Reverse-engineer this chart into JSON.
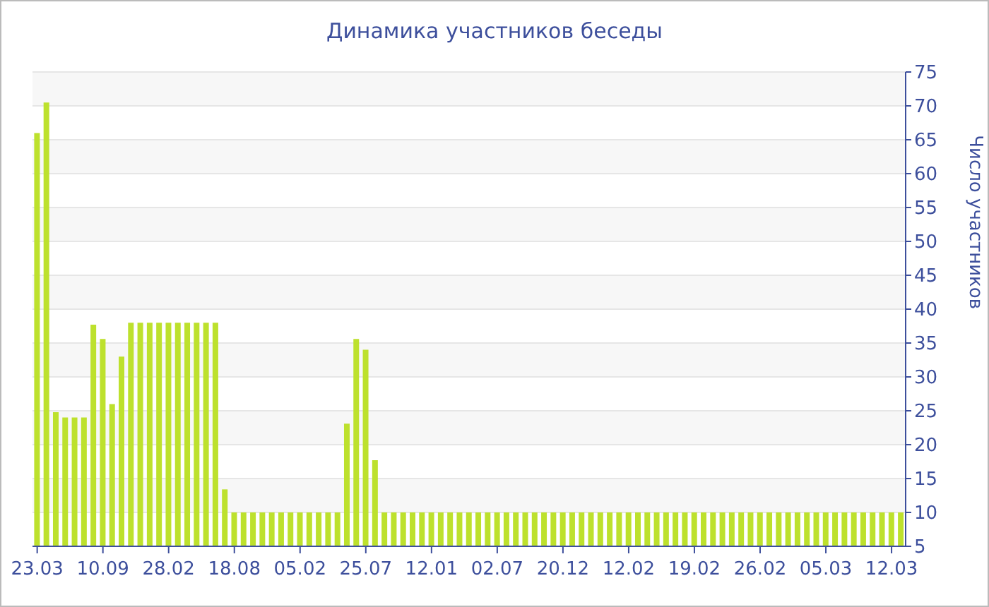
{
  "chart_data": {
    "type": "bar",
    "title": "Динамика участников беседы",
    "ylabel": "Число участников",
    "categories": [
      "23.03",
      null,
      null,
      null,
      null,
      null,
      null,
      "10.09",
      null,
      null,
      null,
      null,
      null,
      null,
      "28.02",
      null,
      null,
      null,
      null,
      null,
      null,
      "18.08",
      null,
      null,
      null,
      null,
      null,
      null,
      "05.02",
      null,
      null,
      null,
      null,
      null,
      null,
      "25.07",
      null,
      null,
      null,
      null,
      null,
      null,
      "12.01",
      null,
      null,
      null,
      null,
      null,
      null,
      "02.07",
      null,
      null,
      null,
      null,
      null,
      null,
      "20.12",
      null,
      null,
      null,
      null,
      null,
      null,
      "12.02",
      null,
      null,
      null,
      null,
      null,
      null,
      "19.02",
      null,
      null,
      null,
      null,
      null,
      null,
      "26.02",
      null,
      null,
      null,
      null,
      null,
      null,
      "05.03",
      null,
      null,
      null,
      null,
      null,
      null,
      "12.03",
      null
    ],
    "values": [
      66,
      70.5,
      24.8,
      24,
      24,
      24,
      37.7,
      35.6,
      26,
      33,
      38,
      38,
      38,
      38,
      38,
      38,
      38,
      38,
      38,
      38,
      13.4,
      10,
      10,
      10,
      10,
      10,
      10,
      10,
      10,
      10,
      10,
      10,
      10,
      23.1,
      35.6,
      34,
      17.7,
      10,
      10,
      10,
      10,
      10,
      10,
      10,
      10,
      10,
      10,
      10,
      10,
      10,
      10,
      10,
      10,
      10,
      10,
      10,
      10,
      10,
      10,
      10,
      10,
      10,
      10,
      10,
      10,
      10,
      10,
      10,
      10,
      10,
      10,
      10,
      10,
      10,
      10,
      10,
      10,
      10,
      10,
      10,
      10,
      10,
      10,
      10,
      10,
      10,
      10,
      10,
      10,
      10,
      10,
      10,
      10
    ],
    "color": "#bde12d",
    "ylim": [
      5,
      75
    ],
    "yticks": [
      5,
      10,
      15,
      20,
      25,
      30,
      35,
      40,
      45,
      50,
      55,
      60,
      65,
      70,
      75
    ],
    "grid": "y"
  }
}
